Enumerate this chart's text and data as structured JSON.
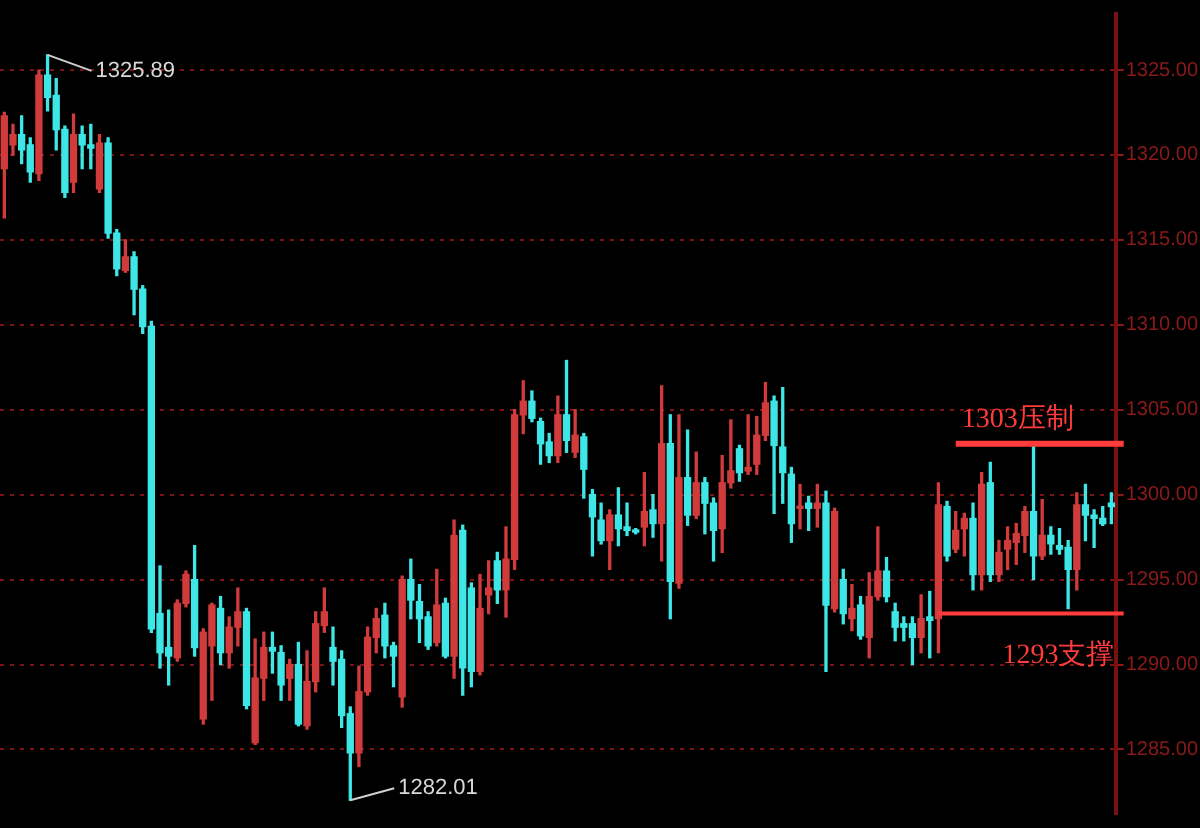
{
  "chart_data": {
    "type": "candlestick",
    "categories": [
      null,
      null,
      null,
      null,
      null,
      null,
      null,
      null,
      null,
      null,
      null,
      null,
      null,
      null,
      null,
      null,
      null,
      null,
      null,
      null,
      null,
      null,
      null,
      null,
      null,
      null,
      null,
      null,
      null,
      null,
      null,
      null,
      null,
      null,
      null,
      null,
      null,
      null,
      null,
      null,
      null,
      null,
      null,
      null,
      null,
      null,
      null,
      null,
      null,
      null,
      null,
      null,
      null,
      null,
      null,
      null,
      null,
      null,
      null,
      null,
      null,
      null,
      null,
      null,
      null,
      null,
      null,
      null,
      null,
      null,
      null,
      null,
      null,
      null,
      null,
      null,
      null,
      null,
      null,
      null,
      null,
      null,
      null,
      null,
      null,
      null,
      null,
      null,
      null,
      null,
      null,
      null,
      null,
      null,
      null,
      null,
      null,
      null,
      null,
      null,
      null,
      null,
      null,
      null,
      null,
      null,
      null,
      null,
      null,
      null,
      null,
      null,
      null,
      null,
      null,
      null,
      null,
      null,
      null,
      null,
      null,
      null,
      null,
      null,
      null,
      null,
      null,
      null,
      null
    ],
    "ohlc": [
      [
        1319.2,
        1322.5,
        1316.3,
        1322.3
      ],
      [
        1320.6,
        1321.8,
        1320,
        1321.2
      ],
      [
        1321.2,
        1322.3,
        1319.5,
        1320.3
      ],
      [
        1320.6,
        1321,
        1318.4,
        1319
      ],
      [
        1318.9,
        1325,
        1318.5,
        1324.7
      ],
      [
        1324.7,
        1325.89,
        1322.6,
        1323.4
      ],
      [
        1323.5,
        1324.5,
        1320.3,
        1321.5
      ],
      [
        1321.5,
        1321.7,
        1317.5,
        1317.8
      ],
      [
        1318.4,
        1322.4,
        1317.8,
        1321.2
      ],
      [
        1321.2,
        1321.7,
        1319.2,
        1320.6
      ],
      [
        1320.6,
        1321.8,
        1319.2,
        1320.4
      ],
      [
        1318,
        1321.2,
        1317.8,
        1320.7
      ],
      [
        1320.7,
        1321,
        1315.1,
        1315.4
      ],
      [
        1315.4,
        1315.6,
        1312.9,
        1313.3
      ],
      [
        1313.2,
        1315,
        1313.1,
        1314
      ],
      [
        1314,
        1314.3,
        1310.6,
        1312.1
      ],
      [
        1312.1,
        1312.3,
        1309.5,
        1309.9
      ],
      [
        1309.9,
        1310.2,
        1291.9,
        1292.1
      ],
      [
        1293,
        1295.8,
        1289.8,
        1290.7
      ],
      [
        1291,
        1293.2,
        1288.8,
        1290.5
      ],
      [
        1290.4,
        1293.8,
        1290.2,
        1293.6
      ],
      [
        1293.6,
        1295.5,
        1293.4,
        1295.3
      ],
      [
        1295,
        1297,
        1290.5,
        1291
      ],
      [
        1286.8,
        1292.1,
        1286.5,
        1291.9
      ],
      [
        1291.1,
        1293.6,
        1287.9,
        1293.5
      ],
      [
        1293.3,
        1294,
        1290,
        1290.7
      ],
      [
        1290.7,
        1292.8,
        1289.8,
        1292.2
      ],
      [
        1292.2,
        1294.5,
        1291.1,
        1293.1
      ],
      [
        1293.1,
        1293.3,
        1287.4,
        1287.6
      ],
      [
        1285.4,
        1291.5,
        1285.3,
        1289.2
      ],
      [
        1289.2,
        1291.9,
        1287.9,
        1291
      ],
      [
        1291,
        1291.9,
        1289.5,
        1290.8
      ],
      [
        1290.7,
        1291.1,
        1287.9,
        1288.8
      ],
      [
        1289.2,
        1290.3,
        1287.9,
        1290
      ],
      [
        1290,
        1291.3,
        1286.4,
        1286.5
      ],
      [
        1286.4,
        1290.8,
        1286.2,
        1289
      ],
      [
        1289,
        1293.1,
        1288.4,
        1292.4
      ],
      [
        1292.3,
        1294.5,
        1291.9,
        1293.1
      ],
      [
        1291,
        1292.2,
        1288.8,
        1290.2
      ],
      [
        1290.3,
        1290.8,
        1286.3,
        1287
      ],
      [
        1287.1,
        1287.5,
        1282.01,
        1284.8
      ],
      [
        1284.8,
        1289.9,
        1284,
        1288.4
      ],
      [
        1288.4,
        1292.2,
        1288.2,
        1291.6
      ],
      [
        1291.6,
        1293.3,
        1290.7,
        1292.7
      ],
      [
        1292.9,
        1293.6,
        1290.4,
        1291.1
      ],
      [
        1291.1,
        1291.3,
        1288.7,
        1290.5
      ],
      [
        1288.1,
        1295.2,
        1287.5,
        1295
      ],
      [
        1295,
        1296.2,
        1292.7,
        1293.8
      ],
      [
        1293.7,
        1294.7,
        1291.3,
        1292.7
      ],
      [
        1292.8,
        1293.1,
        1290.9,
        1291.1
      ],
      [
        1291.3,
        1295.6,
        1291.1,
        1293.5
      ],
      [
        1293.6,
        1293.9,
        1290.4,
        1290.5
      ],
      [
        1290.5,
        1298.5,
        1289.2,
        1297.6
      ],
      [
        1297.9,
        1298.2,
        1288.2,
        1289.8
      ],
      [
        1294.5,
        1294.8,
        1288.7,
        1289.6
      ],
      [
        1289.6,
        1295.3,
        1289.4,
        1293.3
      ],
      [
        1294.1,
        1296.1,
        1293,
        1294.5
      ],
      [
        1296.1,
        1296.6,
        1293.6,
        1294.4
      ],
      [
        1294.4,
        1298.1,
        1292.8,
        1296.2
      ],
      [
        1296.2,
        1305,
        1295.6,
        1304.7
      ],
      [
        1304.7,
        1306.7,
        1303.6,
        1305.5
      ],
      [
        1305.5,
        1306.1,
        1304.3,
        1304.5
      ],
      [
        1304.3,
        1304.5,
        1301.8,
        1303
      ],
      [
        1303.1,
        1303.6,
        1301.9,
        1302.3
      ],
      [
        1302.3,
        1305.8,
        1301.9,
        1304.7
      ],
      [
        1304.7,
        1307.9,
        1302.5,
        1303.2
      ],
      [
        1302.5,
        1305,
        1302.2,
        1303.5
      ],
      [
        1303.4,
        1303.6,
        1299.8,
        1301.5
      ],
      [
        1300,
        1300.3,
        1296.4,
        1298.7
      ],
      [
        1298.5,
        1299.5,
        1297.1,
        1297.3
      ],
      [
        1297.3,
        1299.1,
        1295.6,
        1298.8
      ],
      [
        1298.8,
        1300.4,
        1297,
        1298
      ],
      [
        1298.1,
        1299.5,
        1297.6,
        1297.9
      ],
      [
        1297.9,
        1298,
        1297.7,
        1297.8
      ],
      [
        1298.1,
        1301.3,
        1297,
        1299
      ],
      [
        1299.1,
        1300,
        1297.5,
        1298.3
      ],
      [
        1298.3,
        1306.4,
        1296.1,
        1303
      ],
      [
        1303,
        1304.7,
        1292.7,
        1294.9
      ],
      [
        1294.8,
        1304.7,
        1294.5,
        1301
      ],
      [
        1301,
        1303.8,
        1298.2,
        1298.8
      ],
      [
        1298.8,
        1302.5,
        1298.6,
        1300.7
      ],
      [
        1300.7,
        1301,
        1297.7,
        1299.5
      ],
      [
        1299.5,
        1299.8,
        1296.1,
        1297.9
      ],
      [
        1298,
        1302.3,
        1296.6,
        1300.7
      ],
      [
        1300.7,
        1304.4,
        1300.4,
        1301.4
      ],
      [
        1302.7,
        1302.9,
        1300.8,
        1301.3
      ],
      [
        1301.4,
        1304.7,
        1301.2,
        1301.6
      ],
      [
        1301.8,
        1304.6,
        1301.2,
        1303.5
      ],
      [
        1303.5,
        1306.6,
        1303.2,
        1305.4
      ],
      [
        1305.5,
        1305.8,
        1298.9,
        1302.9
      ],
      [
        1302.8,
        1306.3,
        1299.5,
        1301.3
      ],
      [
        1301.2,
        1301.6,
        1297.2,
        1298.3
      ],
      [
        1299.2,
        1300.6,
        1298,
        1299.3
      ],
      [
        1299.5,
        1299.9,
        1297.9,
        1299.2
      ],
      [
        1299.2,
        1300.6,
        1298.1,
        1299.5
      ],
      [
        1299.5,
        1300.2,
        1289.6,
        1293.5
      ],
      [
        1293.3,
        1299.2,
        1293.1,
        1299
      ],
      [
        1295,
        1295.6,
        1292.4,
        1293
      ],
      [
        1292.7,
        1294.7,
        1292,
        1293.3
      ],
      [
        1293.5,
        1294,
        1291.5,
        1291.7
      ],
      [
        1291.6,
        1295.4,
        1290.4,
        1294
      ],
      [
        1294,
        1298.1,
        1293.8,
        1295.5
      ],
      [
        1295.5,
        1296.3,
        1293.7,
        1294
      ],
      [
        1293.1,
        1293.6,
        1291.4,
        1292.2
      ],
      [
        1292.4,
        1292.8,
        1291.4,
        1292.2
      ],
      [
        1292.4,
        1292.8,
        1290,
        1291.6
      ],
      [
        1291.6,
        1294.1,
        1290.7,
        1292.7
      ],
      [
        1292.8,
        1294.3,
        1290.4,
        1292.6
      ],
      [
        1292.7,
        1300.7,
        1290.7,
        1299.4
      ],
      [
        1299.3,
        1299.6,
        1296.1,
        1296.4
      ],
      [
        1296.8,
        1299,
        1296.6,
        1297.9
      ],
      [
        1298,
        1298.9,
        1296.4,
        1298.6
      ],
      [
        1298.6,
        1299.5,
        1294.4,
        1295.3
      ],
      [
        1295.3,
        1301.3,
        1294.4,
        1300.6
      ],
      [
        1300.7,
        1301.9,
        1294.9,
        1295.3
      ],
      [
        1295.3,
        1297.3,
        1294.9,
        1296.6
      ],
      [
        1296.8,
        1298.1,
        1295.6,
        1297.3
      ],
      [
        1297.2,
        1298.3,
        1295.9,
        1297.7
      ],
      [
        1297.6,
        1299.3,
        1296.6,
        1299
      ],
      [
        1299,
        1303.1,
        1295,
        1296.4
      ],
      [
        1296.4,
        1299.7,
        1296.2,
        1297.6
      ],
      [
        1297.6,
        1298.1,
        1296.5,
        1297.1
      ],
      [
        1297,
        1298,
        1296.5,
        1296.8
      ],
      [
        1296.9,
        1297.3,
        1293.3,
        1295.6
      ],
      [
        1295.6,
        1300.1,
        1294.4,
        1299.4
      ],
      [
        1299.4,
        1300.6,
        1297.3,
        1298.8
      ],
      [
        1298.8,
        1299.1,
        1296.9,
        1298.6
      ],
      [
        1298.6,
        1299.3,
        1298.2,
        1298.3
      ],
      [
        1299.5,
        1300.1,
        1298.3,
        1299.3
      ]
    ],
    "colors": [
      "#d13b3b",
      "#d13b3b",
      "#3ee6e6",
      "#3ee6e6",
      "#d13b3b",
      "#3ee6e6",
      "#3ee6e6",
      "#3ee6e6",
      "#d13b3b",
      "#3ee6e6",
      "#3ee6e6",
      "#d13b3b",
      "#3ee6e6",
      "#3ee6e6",
      "#d13b3b",
      "#3ee6e6",
      "#3ee6e6",
      "#3ee6e6",
      "#3ee6e6",
      "#3ee6e6",
      "#d13b3b",
      "#d13b3b",
      "#3ee6e6",
      "#d13b3b",
      "#d13b3b",
      "#3ee6e6",
      "#d13b3b",
      "#d13b3b",
      "#3ee6e6",
      "#d13b3b",
      "#d13b3b",
      "#3ee6e6",
      "#3ee6e6",
      "#d13b3b",
      "#3ee6e6",
      "#d13b3b",
      "#d13b3b",
      "#d13b3b",
      "#3ee6e6",
      "#3ee6e6",
      "#3ee6e6",
      "#d13b3b",
      "#d13b3b",
      "#d13b3b",
      "#3ee6e6",
      "#3ee6e6",
      "#d13b3b",
      "#3ee6e6",
      "#3ee6e6",
      "#3ee6e6",
      "#d13b3b",
      "#3ee6e6",
      "#d13b3b",
      "#3ee6e6",
      "#3ee6e6",
      "#d13b3b",
      "#d13b3b",
      "#3ee6e6",
      "#d13b3b",
      "#d13b3b",
      "#d13b3b",
      "#3ee6e6",
      "#3ee6e6",
      "#3ee6e6",
      "#d13b3b",
      "#3ee6e6",
      "#d13b3b",
      "#3ee6e6",
      "#3ee6e6",
      "#3ee6e6",
      "#d13b3b",
      "#3ee6e6",
      "#3ee6e6",
      "#3ee6e6",
      "#d13b3b",
      "#3ee6e6",
      "#d13b3b",
      "#3ee6e6",
      "#d13b3b",
      "#3ee6e6",
      "#d13b3b",
      "#3ee6e6",
      "#3ee6e6",
      "#d13b3b",
      "#d13b3b",
      "#3ee6e6",
      "#d13b3b",
      "#d13b3b",
      "#d13b3b",
      "#3ee6e6",
      "#3ee6e6",
      "#3ee6e6",
      "#d13b3b",
      "#3ee6e6",
      "#d13b3b",
      "#3ee6e6",
      "#d13b3b",
      "#3ee6e6",
      "#d13b3b",
      "#3ee6e6",
      "#d13b3b",
      "#d13b3b",
      "#3ee6e6",
      "#3ee6e6",
      "#3ee6e6",
      "#3ee6e6",
      "#d13b3b",
      "#3ee6e6",
      "#d13b3b",
      "#3ee6e6",
      "#d13b3b",
      "#d13b3b",
      "#3ee6e6",
      "#d13b3b",
      "#3ee6e6",
      "#d13b3b",
      "#d13b3b",
      "#d13b3b",
      "#d13b3b",
      "#3ee6e6",
      "#d13b3b",
      "#3ee6e6",
      "#3ee6e6",
      "#3ee6e6",
      "#d13b3b",
      "#3ee6e6",
      "#3ee6e6",
      "#3ee6e6",
      "#3ee6e6"
    ],
    "ylim": [
      1281.2,
      1328.3
    ],
    "yticks": [
      {
        "value": 1285,
        "label": "1285.00"
      },
      {
        "value": 1290,
        "label": "1290.00"
      },
      {
        "value": 1295,
        "label": "1295.00"
      },
      {
        "value": 1300,
        "label": "1300.00"
      },
      {
        "value": 1305,
        "label": "1305.00"
      },
      {
        "value": 1310,
        "label": "1310.00"
      },
      {
        "value": 1315,
        "label": "1315.00"
      },
      {
        "value": 1320,
        "label": "1320.00"
      },
      {
        "value": 1325,
        "label": "1325.00"
      }
    ],
    "grid": "y",
    "tick_labels": "y",
    "ref_lines": [
      {
        "axis": "y",
        "value": 1303,
        "label": "1303压制",
        "color": "#ff3b3b"
      },
      {
        "axis": "y",
        "value": 1293,
        "label": "1293支撑",
        "color": "#ff3b3b"
      }
    ],
    "annotations": [
      "1325.89",
      "1282.01"
    ]
  }
}
